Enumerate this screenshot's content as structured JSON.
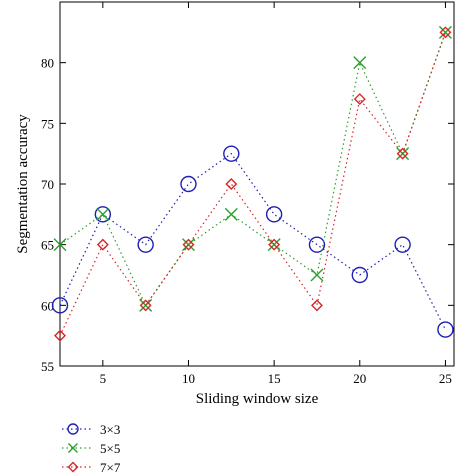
{
  "chart_data": {
    "type": "line",
    "xlabel": "Sliding window size",
    "ylabel": "Segmentation accuracy",
    "xlim": [
      2.5,
      25.5
    ],
    "ylim": [
      55,
      85
    ],
    "x_ticks": [
      5,
      10,
      15,
      20,
      25
    ],
    "y_ticks": [
      55,
      60,
      65,
      70,
      75,
      80
    ],
    "x": [
      2.5,
      5,
      7.5,
      10,
      12.5,
      15,
      17.5,
      20,
      22.5,
      25
    ],
    "grid": false,
    "legend_position": "below plot, left",
    "series": [
      {
        "name": "3×3",
        "marker": "circle",
        "color": "#1f1fb4",
        "values": [
          60,
          67.5,
          65,
          70,
          72.5,
          67.5,
          65,
          62.5,
          65,
          58
        ]
      },
      {
        "name": "5×5",
        "marker": "x",
        "color": "#2ca02c",
        "values": [
          65,
          67.5,
          60,
          65,
          67.5,
          65,
          62.5,
          80,
          72.5,
          82.5
        ]
      },
      {
        "name": "7×7",
        "marker": "diamond",
        "color": "#d62728",
        "values": [
          57.5,
          65,
          60,
          65,
          70,
          65,
          60,
          77,
          72.5,
          82.5
        ]
      }
    ]
  }
}
